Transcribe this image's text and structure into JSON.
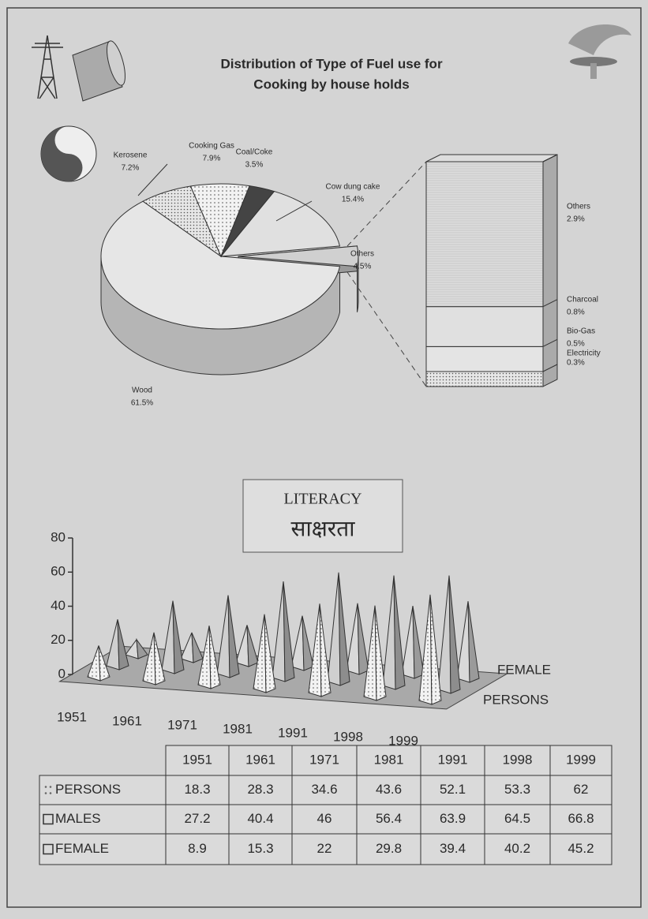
{
  "chart_data": [
    {
      "type": "pie",
      "title": [
        "Distribution  of  Type of Fuel  use for",
        "Cooking by house holds"
      ],
      "categories": [
        "Wood",
        "Kerosene",
        "Cooking Gas",
        "Coal/Coke",
        "Cow dung cake",
        "Others"
      ],
      "values": [
        61.5,
        7.2,
        7.9,
        3.5,
        15.4,
        4.5
      ],
      "value_labels": [
        "61.5%",
        "7.2%",
        "7.9%",
        "3.5%",
        "15.4%",
        "4.5%"
      ],
      "breakdown": {
        "categories": [
          "Electricity",
          "Bio-Gas",
          "Charcoal",
          "Others"
        ],
        "values": [
          0.3,
          0.5,
          0.8,
          2.9
        ],
        "value_labels": [
          "0.3%",
          "0.5%",
          "0.8%",
          "2.9%"
        ]
      }
    },
    {
      "type": "pyramid3d",
      "title": [
        "LITERACY",
        "साक्षरता"
      ],
      "categories": [
        "1951",
        "1961",
        "1971",
        "1981",
        "1991",
        "1998",
        "1999"
      ],
      "series": [
        {
          "name": "PERSONS",
          "values": [
            18.3,
            28.3,
            34.6,
            43.6,
            52.1,
            53.3,
            62
          ]
        },
        {
          "name": "MALES",
          "values": [
            27.2,
            40.4,
            46,
            56.4,
            63.9,
            64.5,
            66.8
          ]
        },
        {
          "name": "FEMALE",
          "values": [
            8.9,
            15.3,
            22,
            29.8,
            39.4,
            40.2,
            45.2
          ]
        }
      ],
      "ylim": [
        0,
        80
      ],
      "yticks": [
        0,
        20,
        40,
        60,
        80
      ]
    }
  ]
}
